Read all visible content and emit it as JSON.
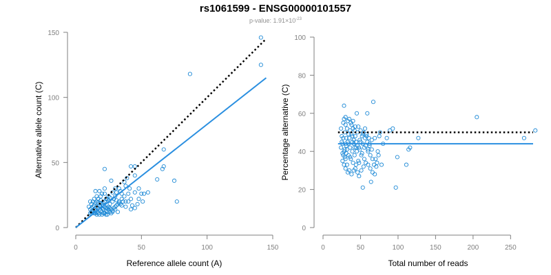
{
  "header": {
    "title": "rs1061599 - ENSG00000101557",
    "pvalue_prefix": "p-value: 1.91×10",
    "pvalue_exponent": "-23"
  },
  "colors": {
    "points": "#1f8ad6",
    "fit_line": "#2a8fe0",
    "reference_line": "#000000",
    "axis": "#7f7f7f"
  },
  "chart_data": [
    {
      "type": "scatter",
      "xlabel": "Reference allele count (A)",
      "ylabel": "Alternative allele count (C)",
      "xlim": [
        0,
        150
      ],
      "ylim": [
        0,
        150
      ],
      "xticks": [
        0,
        50,
        100,
        150
      ],
      "yticks": [
        0,
        50,
        100,
        150
      ],
      "grid": false,
      "reference_line": {
        "style": "dotted",
        "points": [
          [
            0,
            0
          ],
          [
            145,
            145
          ]
        ]
      },
      "fit_line": {
        "style": "solid",
        "points": [
          [
            0,
            0
          ],
          [
            145,
            115
          ]
        ]
      },
      "points": [
        [
          87,
          118
        ],
        [
          141,
          146
        ],
        [
          141,
          125
        ],
        [
          67,
          60
        ],
        [
          67,
          47
        ],
        [
          66,
          45
        ],
        [
          77,
          20
        ],
        [
          75,
          36
        ],
        [
          62,
          37
        ],
        [
          42,
          47
        ],
        [
          45,
          47
        ],
        [
          45,
          40
        ],
        [
          39,
          38
        ],
        [
          37,
          35
        ],
        [
          22,
          45
        ],
        [
          27,
          36
        ],
        [
          30,
          30
        ],
        [
          33,
          30
        ],
        [
          48,
          30
        ],
        [
          50,
          26
        ],
        [
          52,
          26
        ],
        [
          55,
          27
        ],
        [
          45,
          27
        ],
        [
          40,
          26
        ],
        [
          42,
          22
        ],
        [
          37,
          24
        ],
        [
          35,
          22
        ],
        [
          47,
          18
        ],
        [
          43,
          17
        ],
        [
          38,
          16
        ],
        [
          30,
          14
        ],
        [
          32,
          12
        ],
        [
          28,
          12
        ],
        [
          25,
          14
        ],
        [
          26,
          18
        ],
        [
          33,
          19
        ],
        [
          35,
          26
        ],
        [
          28,
          27
        ],
        [
          30,
          24
        ],
        [
          25,
          24
        ],
        [
          24,
          22
        ],
        [
          22,
          26
        ],
        [
          20,
          26
        ],
        [
          22,
          30
        ],
        [
          18,
          28
        ],
        [
          15,
          28
        ],
        [
          16,
          24
        ],
        [
          19,
          24
        ],
        [
          17,
          22
        ],
        [
          13,
          20
        ],
        [
          11,
          20
        ],
        [
          12,
          18
        ],
        [
          14,
          17
        ],
        [
          16,
          16
        ],
        [
          17,
          15
        ],
        [
          18,
          14
        ],
        [
          19,
          13
        ],
        [
          20,
          12
        ],
        [
          21,
          11
        ],
        [
          22,
          11
        ],
        [
          23,
          10
        ],
        [
          24,
          10
        ],
        [
          18,
          10
        ],
        [
          16,
          10
        ],
        [
          14,
          11
        ],
        [
          12,
          12
        ],
        [
          11,
          14
        ],
        [
          10,
          16
        ],
        [
          12,
          15
        ],
        [
          14,
          14
        ],
        [
          15,
          13
        ],
        [
          16,
          12
        ],
        [
          17,
          11
        ],
        [
          18,
          17
        ],
        [
          20,
          18
        ],
        [
          21,
          17
        ],
        [
          22,
          16
        ],
        [
          23,
          15
        ],
        [
          24,
          15
        ],
        [
          25,
          16
        ],
        [
          26,
          15
        ],
        [
          27,
          14
        ],
        [
          28,
          13
        ],
        [
          29,
          15
        ],
        [
          30,
          16
        ],
        [
          31,
          17
        ],
        [
          32,
          18
        ],
        [
          34,
          18
        ],
        [
          36,
          20
        ],
        [
          38,
          20
        ],
        [
          40,
          20
        ],
        [
          22,
          20
        ],
        [
          21,
          19
        ],
        [
          19,
          19
        ],
        [
          17,
          19
        ],
        [
          15,
          19
        ],
        [
          13,
          16
        ],
        [
          12,
          11
        ],
        [
          15,
          11
        ],
        [
          19,
          16
        ],
        [
          20,
          15
        ],
        [
          21,
          14
        ],
        [
          23,
          13
        ],
        [
          24,
          12
        ],
        [
          26,
          12
        ],
        [
          27,
          11
        ],
        [
          28,
          20
        ],
        [
          25,
          21
        ],
        [
          23,
          22
        ],
        [
          19,
          21
        ],
        [
          26,
          23
        ],
        [
          29,
          22
        ],
        [
          31,
          21
        ],
        [
          33,
          20
        ],
        [
          35,
          17
        ],
        [
          14,
          22
        ],
        [
          16,
          20
        ],
        [
          20,
          10
        ],
        [
          13,
          13
        ],
        [
          11,
          11
        ],
        [
          45,
          15
        ],
        [
          42,
          14
        ],
        [
          48,
          22
        ],
        [
          51,
          20
        ],
        [
          38,
          32
        ],
        [
          41,
          30
        ],
        [
          34,
          28
        ],
        [
          31,
          27
        ]
      ]
    },
    {
      "type": "scatter",
      "xlabel": "Total number of reads",
      "ylabel": "Percentage alternative (C)",
      "xlim": [
        0,
        280
      ],
      "ylim": [
        0,
        100
      ],
      "xticks": [
        0,
        50,
        100,
        150,
        200,
        250
      ],
      "yticks": [
        0,
        20,
        40,
        60,
        80,
        100
      ],
      "grid": false,
      "reference_line": {
        "style": "dotted",
        "y": 50
      },
      "fit_line": {
        "style": "solid",
        "y": 44
      },
      "points": [
        [
          205,
          58
        ],
        [
          283,
          51
        ],
        [
          268,
          47
        ],
        [
          127,
          47
        ],
        [
          116,
          42
        ],
        [
          114,
          41
        ],
        [
          97,
          21
        ],
        [
          111,
          33
        ],
        [
          99,
          37
        ],
        [
          93,
          52
        ],
        [
          89,
          51
        ],
        [
          85,
          47
        ],
        [
          76,
          50
        ],
        [
          67,
          66
        ],
        [
          59,
          60
        ],
        [
          53,
          21
        ],
        [
          58,
          48
        ],
        [
          60,
          40
        ],
        [
          70,
          36
        ],
        [
          64,
          24
        ],
        [
          28,
          64
        ],
        [
          30,
          58
        ],
        [
          33,
          56
        ],
        [
          37,
          55
        ],
        [
          40,
          52
        ],
        [
          43,
          48
        ],
        [
          49,
          46
        ],
        [
          53,
          44
        ],
        [
          57,
          43
        ],
        [
          60,
          41
        ],
        [
          63,
          38
        ],
        [
          66,
          36
        ],
        [
          68,
          33
        ],
        [
          71,
          32
        ],
        [
          75,
          48
        ],
        [
          80,
          44
        ],
        [
          78,
          33
        ],
        [
          74,
          38
        ],
        [
          73,
          40
        ],
        [
          69,
          47
        ],
        [
          65,
          46
        ],
        [
          62,
          44
        ],
        [
          55,
          42
        ],
        [
          51,
          38
        ],
        [
          47,
          35
        ],
        [
          44,
          33
        ],
        [
          41,
          30
        ],
        [
          38,
          28
        ],
        [
          35,
          30
        ],
        [
          32,
          33
        ],
        [
          30,
          36
        ],
        [
          28,
          40
        ],
        [
          26,
          44
        ],
        [
          25,
          48
        ],
        [
          24,
          52
        ],
        [
          27,
          55
        ],
        [
          29,
          50
        ],
        [
          31,
          47
        ],
        [
          34,
          44
        ],
        [
          36,
          42
        ],
        [
          39,
          40
        ],
        [
          42,
          38
        ],
        [
          45,
          40
        ],
        [
          48,
          42
        ],
        [
          50,
          45
        ],
        [
          52,
          48
        ],
        [
          54,
          50
        ],
        [
          56,
          52
        ],
        [
          58,
          49
        ],
        [
          61,
          47
        ],
        [
          46,
          50
        ],
        [
          42,
          51
        ],
        [
          38,
          49
        ],
        [
          35,
          47
        ],
        [
          33,
          45
        ],
        [
          31,
          43
        ],
        [
          29,
          41
        ],
        [
          27,
          38
        ],
        [
          26,
          35
        ],
        [
          28,
          33
        ],
        [
          30,
          31
        ],
        [
          33,
          29
        ],
        [
          36,
          37
        ],
        [
          39,
          45
        ],
        [
          41,
          46
        ],
        [
          44,
          45
        ],
        [
          46,
          43
        ],
        [
          49,
          41
        ],
        [
          52,
          39
        ],
        [
          55,
          36
        ],
        [
          57,
          34
        ],
        [
          60,
          33
        ],
        [
          63,
          31
        ],
        [
          66,
          29
        ],
        [
          69,
          28
        ],
        [
          72,
          34
        ],
        [
          35,
          57
        ],
        [
          38,
          54
        ],
        [
          40,
          56
        ],
        [
          43,
          53
        ],
        [
          32,
          52
        ],
        [
          30,
          54
        ],
        [
          27,
          47
        ],
        [
          25,
          45
        ],
        [
          24,
          42
        ],
        [
          26,
          39
        ],
        [
          29,
          37
        ],
        [
          31,
          39
        ],
        [
          34,
          38
        ],
        [
          37,
          36
        ],
        [
          40,
          34
        ],
        [
          43,
          31
        ],
        [
          46,
          29
        ],
        [
          48,
          27
        ],
        [
          51,
          30
        ],
        [
          54,
          32
        ],
        [
          47,
          53
        ],
        [
          50,
          51
        ],
        [
          53,
          49
        ],
        [
          56,
          47
        ],
        [
          59,
          45
        ],
        [
          62,
          43
        ],
        [
          65,
          41
        ],
        [
          34,
          49
        ],
        [
          36,
          51
        ],
        [
          39,
          48
        ],
        [
          41,
          44
        ],
        [
          44,
          42
        ],
        [
          28,
          57
        ],
        [
          30,
          44
        ],
        [
          32,
          41
        ],
        [
          45,
          60
        ],
        [
          48,
          34
        ],
        [
          42,
          42
        ]
      ]
    }
  ]
}
